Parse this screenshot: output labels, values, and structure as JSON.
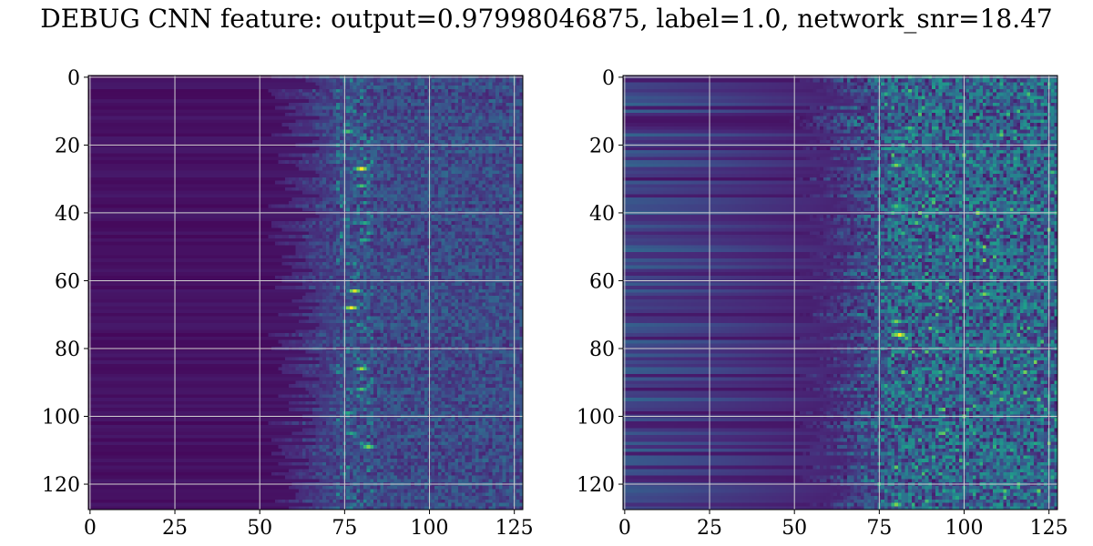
{
  "title": "DEBUG CNN feature: output=0.97998046875, label=1.0, network_snr=18.47",
  "colormap": "viridis",
  "colors": {
    "low": "#440154",
    "mid": "#21918c",
    "high": "#fde725",
    "grid": "#d0d0d0",
    "axis": "#000000"
  },
  "chart_data": [
    {
      "type": "heatmap",
      "title": "",
      "xlabel": "",
      "ylabel": "",
      "xlim": [
        0,
        127
      ],
      "ylim": [
        127,
        0
      ],
      "xticks": [
        0,
        25,
        50,
        75,
        100,
        125
      ],
      "yticks": [
        0,
        20,
        40,
        60,
        80,
        100,
        120
      ],
      "grid": true,
      "shape": [
        128,
        128
      ],
      "value_range": [
        0,
        1
      ],
      "hotspots": [
        {
          "x": 76,
          "y": 16,
          "v": 0.7
        },
        {
          "x": 80,
          "y": 27,
          "v": 1.0
        },
        {
          "x": 80,
          "y": 32,
          "v": 0.7
        },
        {
          "x": 81,
          "y": 43,
          "v": 0.6
        },
        {
          "x": 81,
          "y": 48,
          "v": 0.6
        },
        {
          "x": 78,
          "y": 63,
          "v": 0.95
        },
        {
          "x": 77,
          "y": 68,
          "v": 1.0
        },
        {
          "x": 80,
          "y": 86,
          "v": 0.85
        },
        {
          "x": 80,
          "y": 92,
          "v": 0.7
        },
        {
          "x": 76,
          "y": 99,
          "v": 0.6
        },
        {
          "x": 77,
          "y": 105,
          "v": 0.6
        },
        {
          "x": 82,
          "y": 109,
          "v": 0.8
        }
      ]
    },
    {
      "type": "heatmap",
      "title": "",
      "xlabel": "",
      "ylabel": "",
      "xlim": [
        0,
        127
      ],
      "ylim": [
        127,
        0
      ],
      "xticks": [
        0,
        25,
        50,
        75,
        100,
        125
      ],
      "yticks": [
        0,
        20,
        40,
        60,
        80,
        100,
        120
      ],
      "grid": true,
      "shape": [
        128,
        128
      ],
      "value_range": [
        0,
        1
      ],
      "hotspots": [
        {
          "x": 80,
          "y": 26,
          "v": 0.8
        },
        {
          "x": 84,
          "y": 15,
          "v": 0.7
        },
        {
          "x": 80,
          "y": 38,
          "v": 0.7
        },
        {
          "x": 106,
          "y": 64,
          "v": 0.8
        },
        {
          "x": 80,
          "y": 72,
          "v": 0.8
        },
        {
          "x": 81,
          "y": 76,
          "v": 1.0
        },
        {
          "x": 80,
          "y": 103,
          "v": 0.6
        },
        {
          "x": 80,
          "y": 126,
          "v": 0.8
        }
      ]
    }
  ]
}
